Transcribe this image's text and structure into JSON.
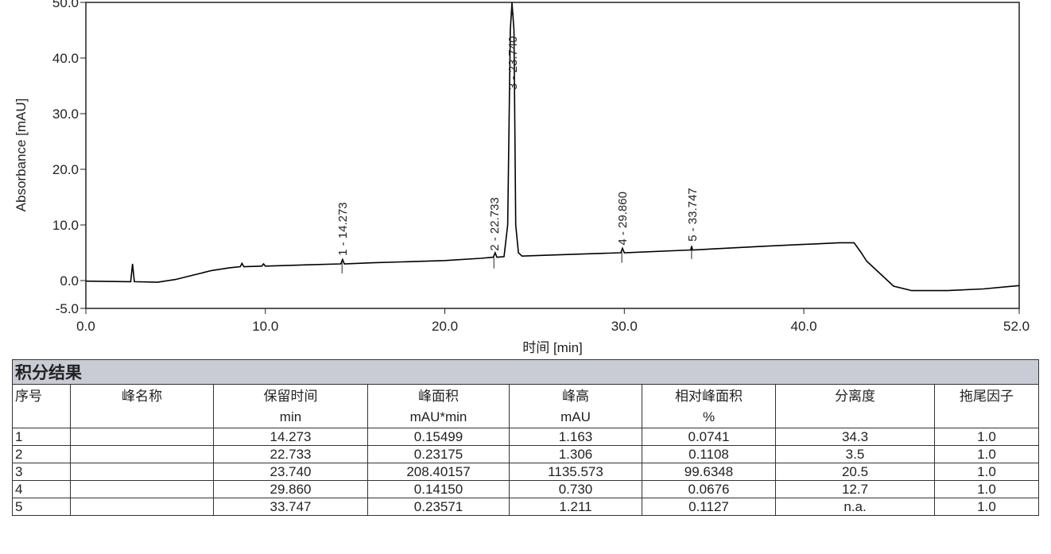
{
  "chart_data": {
    "type": "line",
    "xlabel": "时间 [min]",
    "ylabel": "Absorbance [mAU]",
    "color": "#000000",
    "x": [
      0,
      2.5,
      2.6,
      2.7,
      4,
      5,
      6,
      7,
      8,
      8.6,
      8.7,
      8.8,
      9.8,
      9.9,
      10,
      12,
      14.2,
      14.3,
      14.4,
      16,
      20,
      22,
      22.7,
      22.8,
      22.9,
      23.3,
      23.5,
      23.65,
      23.74,
      23.85,
      23.95,
      24.1,
      24.3,
      26,
      29.8,
      29.9,
      30,
      33.7,
      33.75,
      33.8,
      38,
      42,
      42.8,
      43.2,
      43.5,
      44,
      45,
      46,
      48,
      50,
      52
    ],
    "values": [
      -0.1,
      -0.2,
      3.0,
      -0.2,
      -0.3,
      0.2,
      1.0,
      1.8,
      2.3,
      2.5,
      3.1,
      2.5,
      2.6,
      3.0,
      2.6,
      2.8,
      3.0,
      3.8,
      3.0,
      3.2,
      3.6,
      4.0,
      4.2,
      5.0,
      4.2,
      4.3,
      10,
      45,
      50,
      45,
      10,
      5,
      4.4,
      4.6,
      5.0,
      5.8,
      5.0,
      5.5,
      6.2,
      5.5,
      6.2,
      6.8,
      6.8,
      5.0,
      3.5,
      2.0,
      -1.0,
      -1.8,
      -1.8,
      -1.5,
      -0.9
    ],
    "xlim": [
      0,
      52
    ],
    "ylim": [
      -5,
      50
    ],
    "xticks": [
      {
        "value": 0,
        "label": "0.0"
      },
      {
        "value": 10,
        "label": "10.0"
      },
      {
        "value": 20,
        "label": "20.0"
      },
      {
        "value": 30,
        "label": "30.0"
      },
      {
        "value": 40,
        "label": "40.0"
      },
      {
        "value": 52,
        "label": "52.0"
      }
    ],
    "yticks": [
      {
        "value": -5,
        "label": "-5.0"
      },
      {
        "value": 0,
        "label": "0.0"
      },
      {
        "value": 10,
        "label": "10.0"
      },
      {
        "value": 20,
        "label": "20.0"
      },
      {
        "value": 30,
        "label": "30.0"
      },
      {
        "value": 40,
        "label": "40.0"
      },
      {
        "value": 50,
        "label": "50.0"
      }
    ],
    "annotations": [
      {
        "text": "1 - 14.273",
        "x": 14.273
      },
      {
        "text": "2 - 22.733",
        "x": 22.733
      },
      {
        "text": "3 - 23.740",
        "x": 23.74
      },
      {
        "text": "4 - 29.860",
        "x": 29.86
      },
      {
        "text": "5 - 33.747",
        "x": 33.747
      }
    ]
  },
  "table": {
    "title": "积分结果",
    "columns": [
      "序号",
      "峰名称",
      "保留时间",
      "峰面积",
      "峰高",
      "相对峰面积",
      "分离度",
      "拖尾因子"
    ],
    "units": [
      null,
      null,
      "min",
      "mAU*min",
      "mAU",
      "%",
      null,
      null
    ],
    "rows": [
      [
        "1",
        null,
        "14.273",
        "0.15499",
        "1.163",
        "0.0741",
        "34.3",
        "1.0"
      ],
      [
        "2",
        null,
        "22.733",
        "0.23175",
        "1.306",
        "0.1108",
        "3.5",
        "1.0"
      ],
      [
        "3",
        null,
        "23.740",
        "208.40157",
        "1135.573",
        "99.6348",
        "20.5",
        "1.0"
      ],
      [
        "4",
        null,
        "29.860",
        "0.14150",
        "0.730",
        "0.0676",
        "12.7",
        "1.0"
      ],
      [
        "5",
        null,
        "33.747",
        "0.23571",
        "1.211",
        "0.1127",
        "n.a.",
        "1.0"
      ]
    ]
  }
}
